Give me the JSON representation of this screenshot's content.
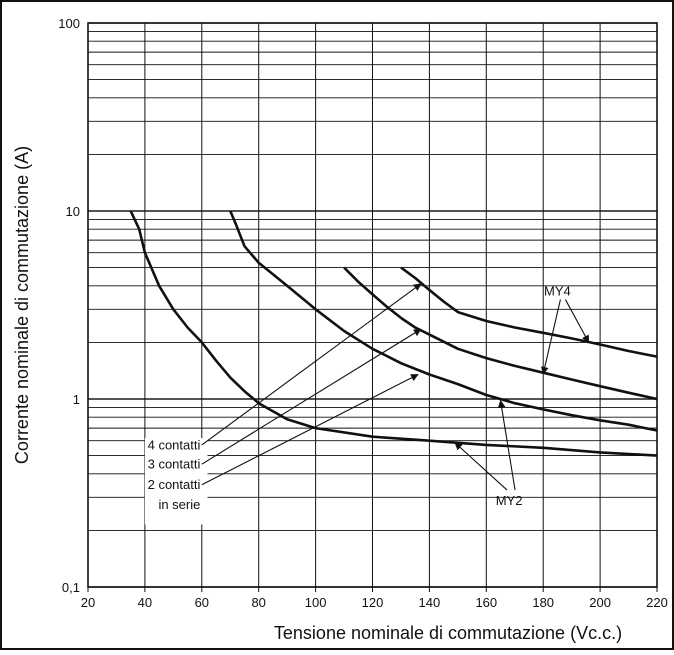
{
  "chart_data": {
    "type": "line",
    "title": "",
    "xlabel": "Tensione nominale di commutazione (Vc.c.)",
    "ylabel": "Corrente nominale di commutazione (A)",
    "xlim": [
      20,
      220
    ],
    "ylim": [
      0.1,
      100
    ],
    "y_scale": "log",
    "grid": true,
    "x_ticks": [
      20,
      40,
      60,
      80,
      100,
      120,
      140,
      160,
      180,
      200,
      220
    ],
    "x_tick_labels": [
      "20",
      "40",
      "60",
      "80",
      "100",
      "120",
      "140",
      "160",
      "180",
      "200",
      "220"
    ],
    "y_ticks": [
      0.1,
      1,
      10,
      100
    ],
    "y_tick_labels": [
      "0,1",
      "1",
      "10",
      "100"
    ],
    "series": [
      {
        "x": [
          35,
          38,
          40,
          45,
          50,
          55,
          60,
          65,
          70,
          75,
          80,
          90,
          100,
          120,
          140,
          160,
          180,
          200,
          220
        ],
        "y": [
          10,
          8,
          6,
          4,
          3,
          2.4,
          2,
          1.6,
          1.3,
          1.1,
          0.95,
          0.78,
          0.7,
          0.63,
          0.6,
          0.57,
          0.55,
          0.52,
          0.5
        ]
      },
      {
        "x": [
          70,
          72,
          75,
          80,
          90,
          100,
          110,
          120,
          130,
          140,
          150,
          160,
          170,
          180,
          190,
          200,
          210,
          220
        ],
        "y": [
          10,
          8.5,
          6.5,
          5.3,
          4,
          3,
          2.3,
          1.85,
          1.55,
          1.35,
          1.2,
          1.05,
          0.95,
          0.88,
          0.82,
          0.77,
          0.73,
          0.68
        ]
      },
      {
        "x": [
          110,
          115,
          120,
          125,
          130,
          135,
          140,
          150,
          160,
          170,
          180,
          190,
          200,
          210,
          220
        ],
        "y": [
          5,
          4.2,
          3.6,
          3.1,
          2.7,
          2.4,
          2.2,
          1.85,
          1.65,
          1.5,
          1.38,
          1.27,
          1.17,
          1.08,
          1
        ]
      },
      {
        "x": [
          130,
          135,
          140,
          145,
          150,
          160,
          170,
          180,
          190,
          200,
          210,
          220
        ],
        "y": [
          5,
          4.4,
          3.8,
          3.3,
          2.9,
          2.6,
          2.4,
          2.25,
          2.1,
          1.95,
          1.8,
          1.68
        ]
      }
    ],
    "annotations": {
      "contacts": [
        "4 contatti",
        "3 contatti",
        "2 contatti",
        "in serie"
      ],
      "my4": "MY4",
      "my2": "MY2"
    }
  }
}
